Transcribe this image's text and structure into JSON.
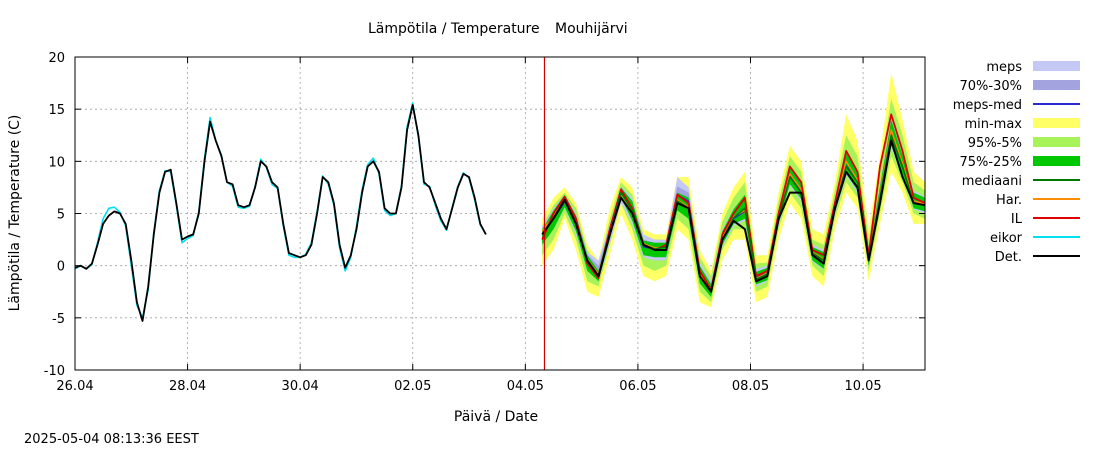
{
  "colors": {
    "meps": "#c4c8f4",
    "p70_30": "#a3a3e0",
    "meps_med": "#2a2ad0",
    "min_max": "#ffff66",
    "p95_5": "#a8f25a",
    "p75_25": "#00c800",
    "mediaani": "#007800",
    "har": "#ff8c00",
    "il": "#e00000",
    "eikor": "#00e0f0",
    "det": "#000000",
    "now_line": "#d00000",
    "grid": "#a0a0a0"
  },
  "chart_data": {
    "type": "line",
    "title": "Lämpötila / Temperature",
    "station": "Mouhijärvi",
    "xlabel": "Päivä / Date",
    "ylabel": "Lämpötila / Temperature (C)",
    "timestamp": "2025-05-04 08:13:36 EEST",
    "xlim_days": [
      0,
      15.1
    ],
    "ylim": [
      -10,
      20
    ],
    "yticks": [
      -10,
      -5,
      0,
      5,
      10,
      15,
      20
    ],
    "xticks": [
      {
        "day": 0,
        "label": "26.04"
      },
      {
        "day": 2,
        "label": "28.04"
      },
      {
        "day": 4,
        "label": "30.04"
      },
      {
        "day": 6,
        "label": "02.05"
      },
      {
        "day": 8,
        "label": "04.05"
      },
      {
        "day": 10,
        "label": "06.05"
      },
      {
        "day": 12,
        "label": "08.05"
      },
      {
        "day": 14,
        "label": "10.05"
      }
    ],
    "grid": true,
    "legend_position": "right",
    "now_day": 8.34,
    "legend": [
      {
        "key": "meps",
        "label": "meps",
        "kind": "band"
      },
      {
        "key": "p70_30",
        "label": "70%-30%",
        "kind": "band"
      },
      {
        "key": "meps_med",
        "label": "meps-med",
        "kind": "line"
      },
      {
        "key": "min_max",
        "label": "min-max",
        "kind": "band"
      },
      {
        "key": "p95_5",
        "label": "95%-5%",
        "kind": "band"
      },
      {
        "key": "p75_25",
        "label": "75%-25%",
        "kind": "band"
      },
      {
        "key": "mediaani",
        "label": "mediaani",
        "kind": "line"
      },
      {
        "key": "har",
        "label": "Har.",
        "kind": "line"
      },
      {
        "key": "il",
        "label": "IL",
        "kind": "line"
      },
      {
        "key": "eikor",
        "label": "eikor",
        "kind": "line"
      },
      {
        "key": "det",
        "label": "Det.",
        "kind": "line"
      }
    ],
    "history_x": [
      0.0,
      0.1,
      0.2,
      0.3,
      0.4,
      0.5,
      0.6,
      0.7,
      0.8,
      0.9,
      1.0,
      1.1,
      1.2,
      1.3,
      1.4,
      1.5,
      1.6,
      1.7,
      1.8,
      1.9,
      2.0,
      2.1,
      2.2,
      2.3,
      2.4,
      2.5,
      2.6,
      2.7,
      2.8,
      2.9,
      3.0,
      3.1,
      3.2,
      3.3,
      3.4,
      3.5,
      3.6,
      3.7,
      3.8,
      3.9,
      4.0,
      4.1,
      4.2,
      4.3,
      4.4,
      4.5,
      4.6,
      4.7,
      4.8,
      4.9,
      5.0,
      5.1,
      5.2,
      5.3,
      5.4,
      5.5,
      5.6,
      5.7,
      5.8,
      5.9,
      6.0,
      6.1,
      6.2,
      6.3,
      6.4,
      6.5,
      6.6,
      6.7,
      6.8,
      6.9,
      7.0,
      7.1,
      7.2,
      7.3,
      7.4,
      7.5,
      7.6,
      7.7,
      7.8,
      7.9,
      8.0,
      8.1,
      8.2,
      8.3
    ],
    "history_det": [
      -0.2,
      0.0,
      -0.3,
      0.2,
      2.0,
      4.0,
      4.8,
      5.2,
      5.0,
      4.0,
      0.5,
      -3.5,
      -5.3,
      -2.0,
      3.0,
      7.0,
      9.0,
      9.2,
      6.0,
      2.5,
      2.8,
      3.0,
      5.0,
      10.0,
      13.8,
      12.0,
      10.5,
      8.0,
      7.8,
      5.8,
      5.6,
      5.8,
      7.5,
      10.0,
      9.5,
      8.0,
      7.5,
      4.0,
      1.2,
      1.0,
      0.8,
      1.0,
      2.0,
      5.0,
      8.5,
      8.0,
      6.0,
      2.0,
      -0.2,
      1.0,
      3.5,
      7.0,
      9.5,
      10.0,
      9.0,
      5.5,
      5.0,
      5.0,
      7.5,
      13.0,
      15.4,
      12.5,
      8.0,
      7.5,
      6.0,
      4.5,
      3.5,
      5.5,
      7.5,
      8.8,
      8.5,
      6.5,
      4.0,
      3.0
    ],
    "history_eikor": [
      -0.3,
      0.0,
      -0.3,
      0.1,
      2.2,
      4.5,
      5.5,
      5.6,
      5.1,
      3.8,
      0.0,
      -3.8,
      -5.0,
      -2.3,
      3.2,
      7.2,
      9.1,
      9.0,
      5.8,
      2.2,
      2.6,
      2.9,
      5.2,
      10.3,
      14.2,
      12.0,
      10.6,
      8.0,
      7.6,
      5.6,
      5.5,
      5.7,
      7.6,
      10.2,
      9.4,
      7.8,
      7.4,
      3.8,
      1.0,
      0.8,
      0.8,
      1.1,
      2.2,
      5.2,
      8.6,
      7.8,
      5.8,
      1.7,
      -0.5,
      0.8,
      3.8,
      7.3,
      9.7,
      10.3,
      8.8,
      5.3,
      4.8,
      5.0,
      7.7,
      13.3,
      15.6,
      12.3,
      7.8,
      7.6,
      5.8,
      4.3,
      3.4,
      5.6,
      7.6,
      8.9,
      8.4,
      6.3,
      3.9,
      3.0
    ],
    "forecast_x": [
      8.3,
      8.5,
      8.7,
      8.9,
      9.1,
      9.3,
      9.5,
      9.7,
      9.9,
      10.1,
      10.3,
      10.5,
      10.7,
      10.9,
      11.1,
      11.3,
      11.5,
      11.7,
      11.9,
      12.1,
      12.3,
      12.5,
      12.7,
      12.9,
      13.1,
      13.3,
      13.5,
      13.7,
      13.9,
      14.1,
      14.3,
      14.5,
      14.7,
      14.9,
      15.1
    ],
    "forecast_det": [
      3.0,
      4.5,
      6.3,
      4.0,
      0.5,
      -1.0,
      3.0,
      6.5,
      5.0,
      2.0,
      1.5,
      1.5,
      6.0,
      5.5,
      -1.0,
      -2.5,
      2.5,
      4.3,
      3.5,
      -1.5,
      -1.0,
      4.5,
      7.0,
      7.0,
      1.0,
      0.2,
      5.5,
      9.0,
      7.5,
      0.5,
      6.0,
      12.0,
      8.5,
      6.0,
      5.8
    ],
    "forecast_il": [
      2.5,
      5.0,
      6.6,
      4.5,
      0.2,
      -1.2,
      3.5,
      7.3,
      5.5,
      2.0,
      1.5,
      2.0,
      6.8,
      6.0,
      -0.5,
      -2.3,
      3.0,
      5.0,
      6.5,
      -1.0,
      -0.5,
      5.0,
      9.5,
      8.0,
      1.5,
      1.0,
      6.0,
      11.0,
      9.0,
      1.0,
      9.5,
      14.5,
      11.0,
      6.5,
      6.0
    ],
    "forecast_har": [
      3.3,
      4.8,
      6.2,
      4.1,
      0.6,
      -0.8,
      3.2,
      6.9,
      5.2,
      2.1,
      1.7,
      1.8,
      6.3,
      5.6,
      -0.8,
      -2.3,
      2.7,
      4.7,
      5.3,
      -1.2,
      -0.7,
      4.8,
      8.8,
      7.3,
      1.3,
      0.6,
      5.8,
      10.0,
      8.2,
      0.8,
      6.8,
      13.0,
      9.8,
      6.2,
      5.9
    ],
    "forecast_mediaani": [
      3.0,
      4.6,
      6.3,
      4.0,
      0.4,
      -1.0,
      3.0,
      7.0,
      5.3,
      2.0,
      1.6,
      1.8,
      6.2,
      5.5,
      -1.0,
      -2.4,
      2.5,
      4.6,
      5.5,
      -1.3,
      -0.8,
      4.5,
      8.5,
      7.0,
      1.2,
      0.5,
      5.5,
      9.5,
      8.0,
      0.6,
      6.5,
      12.5,
      9.5,
      6.0,
      5.8
    ],
    "forecast_meps_med": [
      3.0,
      4.5,
      6.1,
      4.2,
      0.6,
      -0.8,
      3.2,
      6.9,
      5.2,
      1.8,
      1.6,
      1.5,
      6.8,
      6.2,
      -0.8,
      -2.2,
      2.6,
      4.5,
      5.2,
      -1.1,
      -0.7,
      4.4,
      8.6,
      7.1,
      1.1,
      0.5,
      5.6,
      9.6,
      8.1,
      0.7,
      6.6,
      12.4,
      9.4,
      6.1,
      5.9
    ],
    "band_minmax_low": [
      0.0,
      1.5,
      4.5,
      1.5,
      -2.5,
      -3.0,
      1.0,
      5.0,
      2.5,
      -1.0,
      -1.5,
      -1.0,
      3.5,
      2.5,
      -3.5,
      -4.0,
      0.5,
      2.5,
      2.5,
      -3.5,
      -3.0,
      2.5,
      6.0,
      4.5,
      -1.0,
      -2.0,
      3.5,
      7.0,
      5.5,
      -1.5,
      4.0,
      9.0,
      7.0,
      4.0,
      4.0
    ],
    "band_minmax_high": [
      4.5,
      6.5,
      7.5,
      6.0,
      2.0,
      0.5,
      5.5,
      8.5,
      7.5,
      3.5,
      3.0,
      3.0,
      8.5,
      8.5,
      1.5,
      -0.5,
      5.0,
      7.5,
      9.0,
      1.0,
      1.0,
      7.0,
      11.5,
      10.0,
      3.5,
      3.0,
      8.0,
      14.5,
      12.0,
      3.5,
      10.5,
      18.5,
      14.0,
      9.0,
      8.0
    ],
    "band_95_5_low": [
      1.0,
      2.5,
      5.0,
      2.5,
      -1.5,
      -2.0,
      2.0,
      6.0,
      3.5,
      0.0,
      -0.5,
      0.0,
      4.5,
      3.5,
      -2.5,
      -3.5,
      1.5,
      3.5,
      3.5,
      -2.5,
      -2.0,
      3.5,
      7.0,
      5.5,
      0.0,
      -1.0,
      4.5,
      8.0,
      6.5,
      -0.5,
      5.0,
      10.5,
      8.0,
      5.0,
      4.5
    ],
    "band_95_5_high": [
      3.8,
      5.8,
      7.0,
      5.5,
      1.5,
      0.0,
      4.5,
      8.0,
      6.8,
      2.8,
      2.5,
      2.5,
      7.8,
      7.5,
      0.8,
      -1.0,
      4.2,
      6.5,
      8.0,
      0.2,
      0.3,
      6.2,
      10.5,
      9.0,
      2.5,
      2.0,
      7.2,
      12.5,
      10.5,
      2.5,
      9.0,
      16.0,
      12.5,
      8.0,
      7.2
    ],
    "band_75_25_low": [
      2.0,
      3.5,
      5.6,
      3.3,
      -0.5,
      -1.5,
      2.5,
      6.5,
      4.3,
      1.0,
      0.8,
      0.8,
      5.3,
      4.5,
      -1.7,
      -3.0,
      2.0,
      4.0,
      4.5,
      -1.8,
      -1.4,
      4.0,
      7.8,
      6.4,
      0.5,
      -0.3,
      5.0,
      8.8,
      7.2,
      0.0,
      5.8,
      11.5,
      8.8,
      5.5,
      5.2
    ],
    "band_75_25_high": [
      3.5,
      5.3,
      6.8,
      4.8,
      1.0,
      -0.5,
      3.8,
      7.5,
      6.2,
      2.4,
      2.2,
      2.2,
      7.0,
      6.5,
      0.0,
      -1.8,
      3.3,
      5.4,
      6.8,
      -0.6,
      -0.2,
      5.2,
      9.4,
      8.0,
      1.8,
      1.3,
      6.3,
      10.8,
      9.0,
      1.4,
      7.6,
      14.0,
      10.6,
      7.0,
      6.5
    ],
    "band_meps_low": [
      2.0,
      3.5,
      5.5,
      3.0,
      -0.5,
      -1.5,
      2.0,
      6.0,
      4.0,
      0.8,
      0.5,
      0.5,
      5.5,
      5.0,
      -1.5,
      -3.0,
      1.8,
      3.8,
      4.3,
      -2.0,
      -1.5,
      3.8,
      7.6,
      6.2,
      0.4,
      -0.4,
      4.8,
      8.6,
      7.0,
      -0.2,
      5.6,
      11.3,
      8.6,
      5.4,
      5.0
    ],
    "band_meps_high": [
      3.8,
      5.5,
      6.8,
      5.0,
      1.3,
      0.5,
      4.0,
      7.6,
      6.5,
      3.0,
      2.5,
      2.5,
      8.5,
      7.5,
      0.3,
      -1.5,
      3.5,
      5.5,
      6.5,
      -0.3,
      0.0,
      5.3,
      9.6,
      8.2,
      2.0,
      1.5,
      6.5,
      11.0,
      9.2,
      1.6,
      7.8,
      14.2,
      10.8,
      7.2,
      6.6
    ],
    "band_70_30_low": [
      2.4,
      3.9,
      5.7,
      3.5,
      -0.1,
      -1.2,
      2.6,
      6.4,
      4.5,
      1.1,
      0.9,
      0.9,
      6.0,
      5.5,
      -1.2,
      -2.7,
      2.1,
      4.1,
      4.7,
      -1.6,
      -1.2,
      4.0,
      8.0,
      6.6,
      0.7,
      0.0,
      5.1,
      9.0,
      7.5,
      0.2,
      6.0,
      11.8,
      9.0,
      5.7,
      5.4
    ],
    "band_70_30_high": [
      3.5,
      5.1,
      6.5,
      4.8,
      1.1,
      0.0,
      3.7,
      7.3,
      6.0,
      2.5,
      2.2,
      2.2,
      7.6,
      7.0,
      0.0,
      -1.7,
      3.1,
      5.0,
      5.8,
      -0.6,
      -0.3,
      4.9,
      9.2,
      7.7,
      1.6,
      1.0,
      6.1,
      10.3,
      8.7,
      1.2,
      7.2,
      13.2,
      10.0,
      6.6,
      6.2
    ]
  }
}
